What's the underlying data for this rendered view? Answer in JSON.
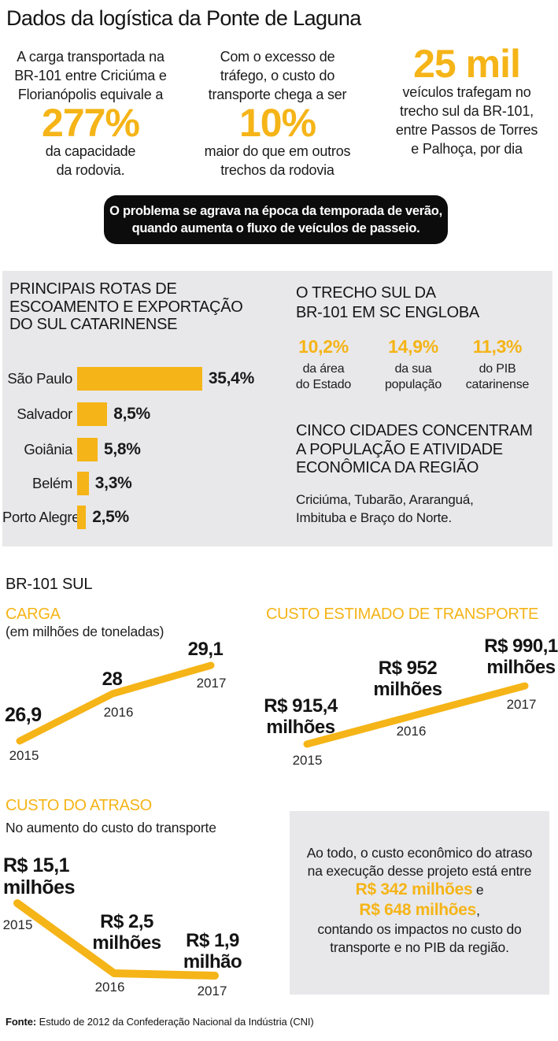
{
  "page": {
    "title": "Dados da logística da Ponte de Laguna",
    "source_label": "Fonte:",
    "source_text": " Estudo de 2012 da Confederação Nacional da Indústria (CNI)"
  },
  "colors": {
    "accent_yellow": "#F5B417",
    "panel_gray": "#E8E8EA",
    "banner_black": "#0C0C0C",
    "text_black": "#1A1A1A"
  },
  "top_stats": [
    {
      "pre_lines": [
        "A carga transportada na",
        "BR-101 entre Criciúma e",
        "Florianópolis equivale a"
      ],
      "big": "277%",
      "post_lines": [
        "da capacidade",
        "da rodovia."
      ]
    },
    {
      "pre_lines": [
        "Com o excesso de",
        "tráfego, o custo do",
        "transporte chega a ser"
      ],
      "big": "10%",
      "post_lines": [
        "maior do que em outros",
        "trechos da rodovia"
      ]
    },
    {
      "big": "25 mil",
      "post_lines": [
        "veículos trafegam no",
        "trecho sul da BR-101,",
        "entre Passos de Torres",
        "e Palhoça, por dia"
      ]
    }
  ],
  "banner_lines": [
    "O problema se agrava na época da temporada de verão,",
    "quando aumenta o fluxo de veículos de passeio."
  ],
  "region_panel": {
    "routes_heading_lines": [
      "PRINCIPAIS ROTAS DE",
      "ESCOAMENTO E EXPORTAÇÃO",
      "DO SUL CATARINENSE"
    ],
    "trecho_heading_lines": [
      "O TRECHO SUL DA",
      "BR-101 EM SC ENGLOBA"
    ],
    "trecho_stats": [
      {
        "value": "10,2%",
        "desc_lines": [
          "da área",
          "do Estado"
        ]
      },
      {
        "value": "14,9%",
        "desc_lines": [
          "da sua",
          "população"
        ]
      },
      {
        "value": "11,3%",
        "desc_lines": [
          "do PIB",
          "catarinense"
        ]
      }
    ],
    "cities_heading_lines": [
      "CINCO CIDADES CONCENTRAM",
      "A POPULAÇÃO E ATIVIDADE",
      "ECONÔMICA DA REGIÃO"
    ],
    "cities_lines": [
      "Criciúma, Tubarão, Araranguá,",
      "Imbituba e Braço do Norte."
    ]
  },
  "section_label": "BR-101 SUL",
  "chart_data": [
    {
      "id": "rotas",
      "type": "bar",
      "title": "PRINCIPAIS ROTAS DE ESCOAMENTO E EXPORTAÇÃO DO SUL CATARINENSE",
      "categories": [
        "São Paulo",
        "Salvador",
        "Goiânia",
        "Belém",
        "Porto Alegre"
      ],
      "values": [
        35.4,
        8.5,
        5.8,
        3.3,
        2.5
      ],
      "value_labels": [
        "35,4%",
        "8,5%",
        "5,8%",
        "3,3%",
        "2,5%"
      ],
      "unit": "%",
      "orientation": "horizontal",
      "xlim": [
        0,
        40
      ]
    },
    {
      "id": "carga",
      "type": "line",
      "title": "CARGA",
      "subtitle": "(em milhões de toneladas)",
      "x_labels": [
        "2015",
        "2016",
        "2017"
      ],
      "values": [
        26.9,
        28,
        29.1
      ],
      "value_labels": [
        "26,9",
        "28",
        "29,1"
      ],
      "ylabel": "milhões de toneladas"
    },
    {
      "id": "custo_transporte",
      "type": "line",
      "title": "CUSTO ESTIMADO DE TRANSPORTE",
      "x_labels": [
        "2015",
        "2016",
        "2017"
      ],
      "values": [
        915.4,
        952,
        990.1
      ],
      "value_labels": [
        "R$ 915,4 milhões",
        "R$ 952 milhões",
        "R$ 990,1 milhões"
      ],
      "ylabel": "R$ milhões"
    },
    {
      "id": "custo_atraso",
      "type": "line",
      "title": "CUSTO DO ATRASO",
      "subtitle": "No aumento do custo do transporte",
      "x_labels": [
        "2015",
        "2016",
        "2017"
      ],
      "values": [
        15.1,
        2.5,
        1.9
      ],
      "value_labels": [
        "R$ 15,1 milhões",
        "R$ 2,5 milhões",
        "R$ 1,9 milhão"
      ],
      "ylabel": "R$ milhões"
    }
  ],
  "summary_box": {
    "lines_before": [
      "Ao todo, o custo econômico do atraso",
      "na execução desse projeto está entre"
    ],
    "highlight1": "R$ 342 milhões",
    "sep1": " e",
    "highlight2": "R$ 648 milhões",
    "sep2": ",",
    "lines_after": [
      "contando os impactos no custo do",
      "transporte e no PIB da região."
    ]
  }
}
